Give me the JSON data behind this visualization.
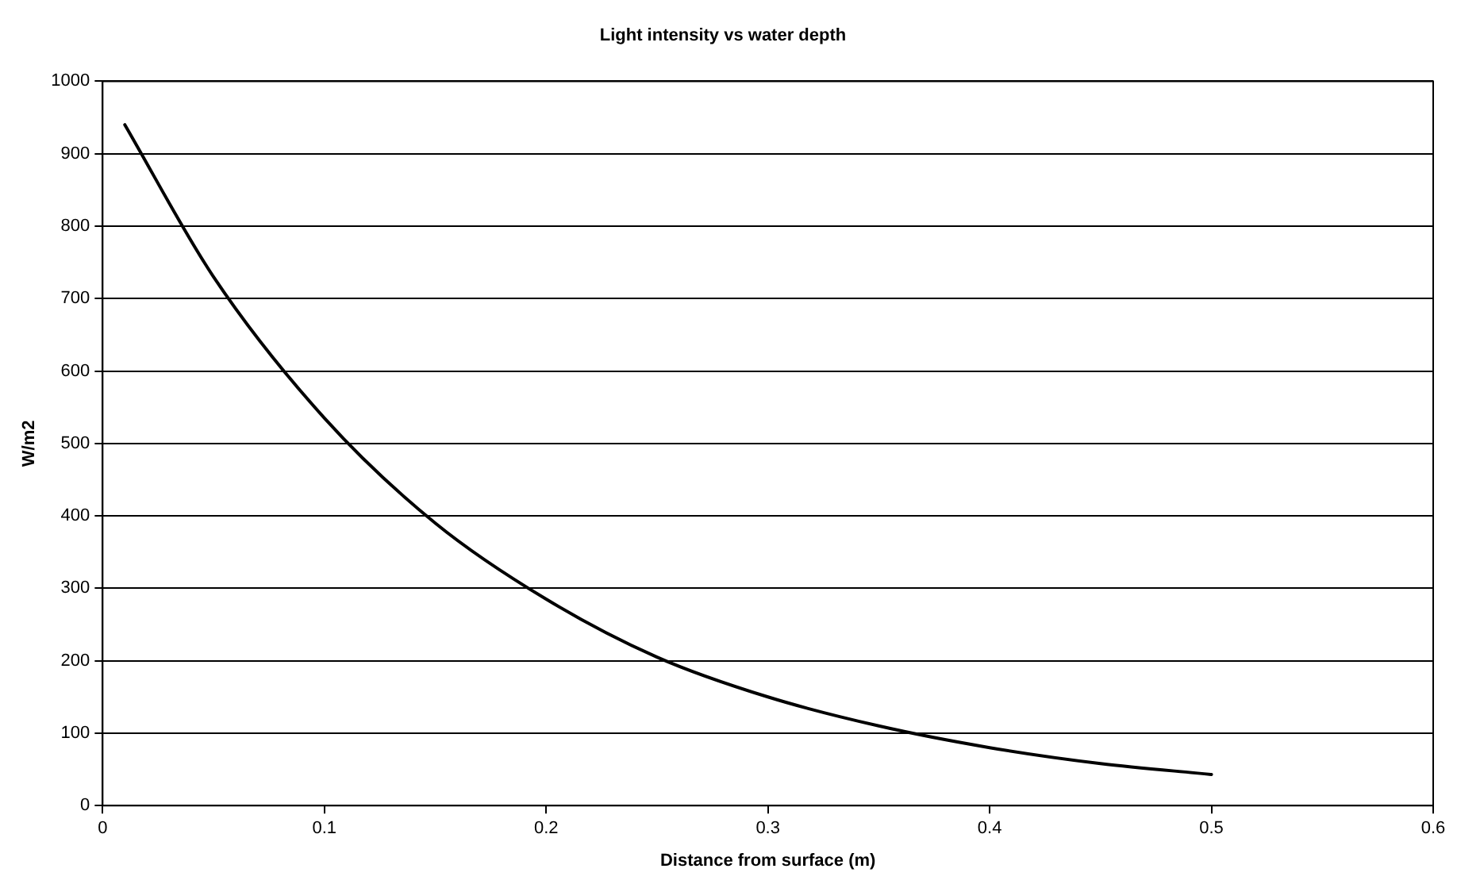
{
  "chart_data": {
    "type": "line",
    "title": "Light intensity vs water depth",
    "xlabel": "Distance from surface (m)",
    "ylabel": "W/m2",
    "x": [
      0.01,
      0.05,
      0.1,
      0.15,
      0.2,
      0.25,
      0.3,
      0.35,
      0.4,
      0.45,
      0.5
    ],
    "series": [
      {
        "color": "#000000",
        "values": [
          940,
          730,
          535,
          390,
          285,
          205,
          150,
          110,
          80,
          58,
          43
        ]
      }
    ],
    "xlim": [
      0,
      0.6
    ],
    "xticks": [
      0,
      0.1,
      0.2,
      0.3,
      0.4,
      0.5,
      0.6
    ],
    "ylim": [
      0,
      1000
    ],
    "yticks": [
      0,
      100,
      200,
      300,
      400,
      500,
      600,
      700,
      800,
      900,
      1000
    ],
    "grid": "y",
    "legend": false,
    "marker": "none",
    "line_style": "solid"
  }
}
